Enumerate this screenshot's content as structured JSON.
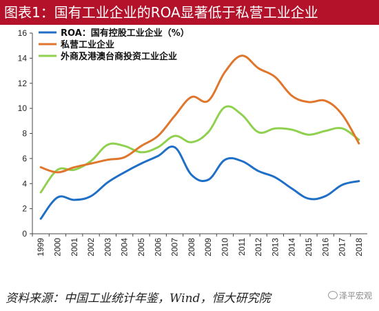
{
  "header": {
    "title": "图表1：国有工业企业的ROA显著低于私营工业企业"
  },
  "footer": {
    "source": "资料来源：中国工业统计年鉴，Wind，恒大研究院",
    "watermark": "泽平宏观",
    "watermark_icon": "wechat-icon"
  },
  "chart_data": {
    "type": "line",
    "x": [
      "1999",
      "2000",
      "2001",
      "2002",
      "2003",
      "2004",
      "2005",
      "2006",
      "2007",
      "2008",
      "2009",
      "2010",
      "2011",
      "2012",
      "2013",
      "2014",
      "2015",
      "2016",
      "2017",
      "2018"
    ],
    "ylim": [
      0,
      16
    ],
    "yticks": [
      0,
      2,
      4,
      6,
      8,
      10,
      12,
      14,
      16
    ],
    "grid": false,
    "legend_position": "top-left",
    "series": [
      {
        "name": "ROA：国有控股工业企业（%）",
        "color": "#1f6fc6",
        "values": [
          1.2,
          2.9,
          2.7,
          3.0,
          4.1,
          4.9,
          5.6,
          6.2,
          6.9,
          4.7,
          4.3,
          5.9,
          5.8,
          5.0,
          4.5,
          3.6,
          2.8,
          3.0,
          3.9,
          4.2
        ]
      },
      {
        "name": "私营工业企业",
        "color": "#e0762b",
        "values": [
          5.3,
          4.9,
          5.3,
          5.6,
          5.9,
          6.1,
          7.0,
          7.8,
          9.4,
          10.9,
          10.6,
          12.9,
          14.2,
          13.2,
          12.5,
          11.0,
          10.5,
          10.6,
          9.5,
          7.2
        ]
      },
      {
        "name": "外商及港澳台商投资工业企业",
        "color": "#8fd14f",
        "values": [
          3.3,
          5.1,
          5.1,
          5.8,
          7.1,
          7.0,
          6.5,
          6.9,
          7.8,
          7.3,
          8.1,
          10.1,
          9.5,
          8.1,
          8.4,
          8.3,
          7.9,
          8.2,
          8.4,
          7.5
        ]
      }
    ]
  }
}
